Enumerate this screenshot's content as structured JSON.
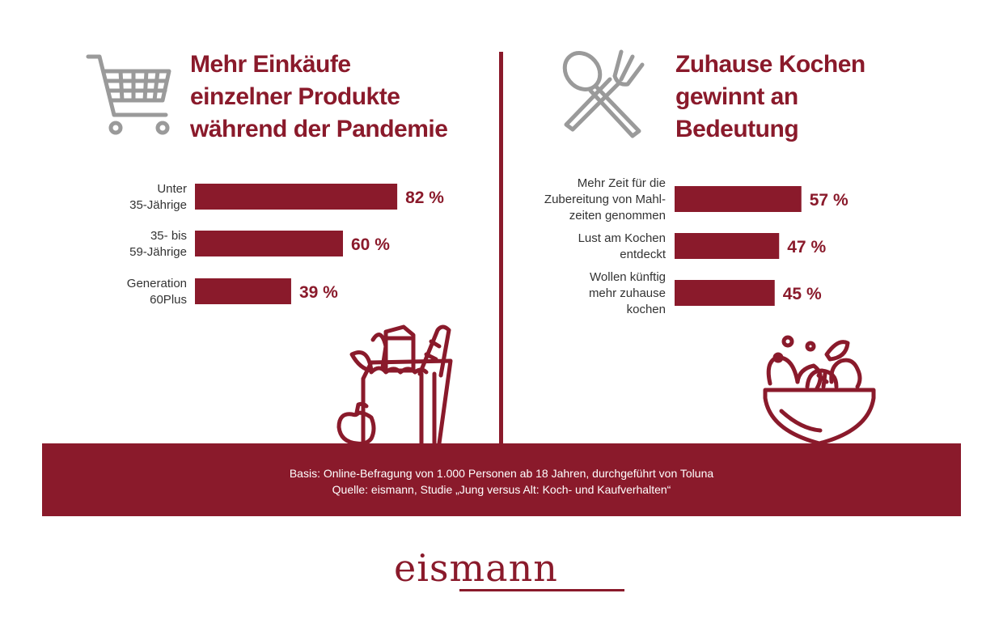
{
  "left_panel": {
    "title": "Mehr Einkäufe\neinzelner Produkte\nwährend der Pandemie"
  },
  "right_panel": {
    "title": "Zuhause Kochen\ngewinnt an\nBedeutung"
  },
  "chart_data": [
    {
      "type": "bar",
      "orientation": "horizontal",
      "title": "Mehr Einkäufe einzelner Produkte während der Pandemie",
      "categories": [
        "Unter\n35-Jährige",
        "35- bis\n59-Jährige",
        "Generation\n60Plus"
      ],
      "values": [
        82,
        60,
        39
      ],
      "value_labels": [
        "82 %",
        "60 %",
        "39 %"
      ],
      "unit": "%",
      "xlim": [
        0,
        100
      ],
      "grid": false,
      "color": "#8a1a2b"
    },
    {
      "type": "bar",
      "orientation": "horizontal",
      "title": "Zuhause Kochen gewinnt an Bedeutung",
      "categories": [
        "Mehr Zeit für die\nZubereitung von Mahl-\nzeiten genommen",
        "Lust am Kochen\nentdeckt",
        "Wollen künftig\nmehr zuhause\nkochen"
      ],
      "values": [
        57,
        47,
        45
      ],
      "value_labels": [
        "57 %",
        "47 %",
        "45 %"
      ],
      "unit": "%",
      "xlim": [
        0,
        100
      ],
      "grid": false,
      "color": "#8a1a2b"
    }
  ],
  "footer": {
    "basis": "Basis: Online-Befragung von 1.000 Personen ab 18 Jahren, durchgeführt von Toluna",
    "source": "Quelle: eismann, Studie „Jung versus Alt: Koch- und Kaufverhalten“"
  },
  "logo": {
    "text": "eismann"
  },
  "icons": {
    "left_top": "shopping-cart-icon",
    "right_top": "spoon-fork-icon",
    "left_bottom": "grocery-bag-icon",
    "right_bottom": "salad-bowl-icon"
  },
  "colors": {
    "accent": "#8a1a2b",
    "icon_gray": "#9a9a9a"
  }
}
